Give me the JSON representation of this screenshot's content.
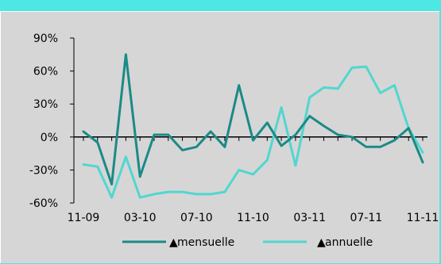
{
  "chart_data": {
    "type": "line",
    "title": "",
    "xlabel": "",
    "ylabel": "",
    "ylim": [
      -60,
      90
    ],
    "y_ticks": [
      "90%",
      "60%",
      "30%",
      "0%",
      "-30%",
      "-60%"
    ],
    "y_tick_values": [
      90,
      60,
      30,
      0,
      -30,
      -60
    ],
    "x_tick_labels": [
      "11-09",
      "03-10",
      "07-10",
      "11-10",
      "03-11",
      "07-11",
      "11-11"
    ],
    "x": [
      "11-09",
      "12-09",
      "01-10",
      "02-10",
      "03-10",
      "04-10",
      "05-10",
      "06-10",
      "07-10",
      "08-10",
      "09-10",
      "10-10",
      "11-10",
      "12-10",
      "01-11",
      "02-11",
      "03-11",
      "04-11",
      "05-11",
      "06-11",
      "07-11",
      "08-11",
      "09-11",
      "10-11",
      "11-11"
    ],
    "grid": false,
    "legend_position": "bottom",
    "series": [
      {
        "name": "mensuelle",
        "color": "#1b8a86",
        "values": [
          5,
          -5,
          -43,
          75,
          -36,
          2,
          2,
          -12,
          -9,
          5,
          -9,
          47,
          -3,
          13,
          -8,
          2,
          19,
          10,
          2,
          0,
          -9,
          -9,
          -3,
          8,
          -23
        ]
      },
      {
        "name": "annuelle",
        "color": "#52d6d0",
        "values": [
          -25,
          -27,
          -55,
          -18,
          -55,
          -52,
          -50,
          -50,
          -52,
          -52,
          -50,
          -30,
          -34,
          -21,
          27,
          -26,
          36,
          45,
          44,
          63,
          64,
          40,
          47,
          8,
          -14
        ]
      }
    ],
    "legend_markers": [
      "▲",
      "▲"
    ]
  }
}
